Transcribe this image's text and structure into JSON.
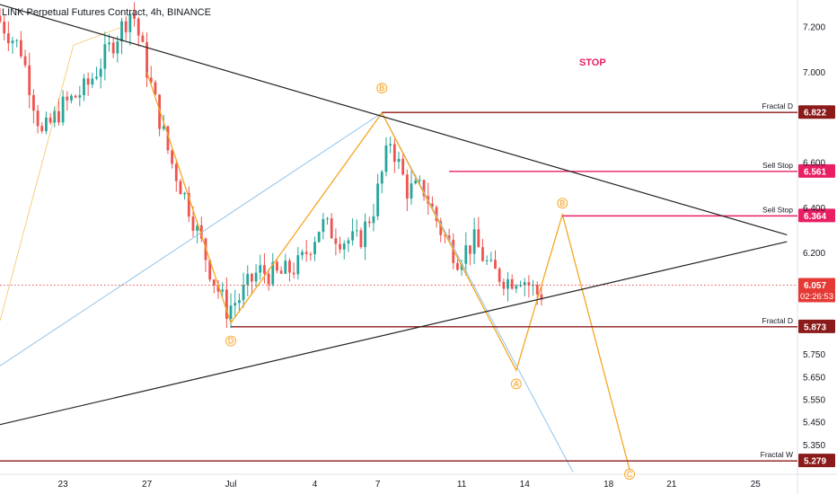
{
  "header": {
    "title": "LINK Perpetual Futures Contract, 4h, BINANCE"
  },
  "colors": {
    "up": "#26a69a",
    "down": "#ef5350",
    "pink": "#e91e63",
    "darkred": "#8b1a1a",
    "black": "#222222",
    "blue": "#90c4ec",
    "orange": "#f5a623",
    "current": "#e53935"
  },
  "chart_data": {
    "type": "candlestick",
    "title": "LINK Perpetual Futures Contract, 4h, BINANCE",
    "ylim": [
      5.22,
      7.32
    ],
    "xlim": [
      20,
      27.5
    ],
    "x_ticks": [
      {
        "v": 23,
        "label": "23"
      },
      {
        "v": 27,
        "label": "27"
      },
      {
        "v": 31,
        "label": "Jul"
      },
      {
        "v": 35,
        "label": "4"
      },
      {
        "v": 38,
        "label": "7"
      },
      {
        "v": 42,
        "label": "11"
      },
      {
        "v": 45,
        "label": "14"
      },
      {
        "v": 49,
        "label": "18"
      },
      {
        "v": 52,
        "label": "21"
      },
      {
        "v": 56,
        "label": "25"
      }
    ],
    "y_ticks": [
      "7.200",
      "7.000",
      "6.600",
      "6.400",
      "6.200",
      "5.750",
      "5.650",
      "5.550",
      "5.450",
      "5.350"
    ],
    "candle_anchors": [
      [
        20.0,
        7.25
      ],
      [
        21.2,
        7.1
      ],
      [
        22.2,
        6.72
      ],
      [
        23.2,
        6.85
      ],
      [
        24.3,
        6.93
      ],
      [
        25.5,
        7.12
      ],
      [
        26.5,
        7.28
      ],
      [
        27.5,
        6.9
      ],
      [
        28.3,
        6.62
      ],
      [
        29.3,
        6.38
      ],
      [
        30.3,
        6.1
      ],
      [
        31.0,
        5.95
      ],
      [
        31.6,
        6.0
      ],
      [
        32.5,
        6.12
      ],
      [
        33.5,
        6.1
      ],
      [
        34.5,
        6.15
      ],
      [
        35.5,
        6.33
      ],
      [
        36.5,
        6.26
      ],
      [
        37.3,
        6.25
      ],
      [
        38.0,
        6.4
      ],
      [
        38.8,
        6.7
      ],
      [
        39.6,
        6.48
      ],
      [
        40.4,
        6.48
      ],
      [
        41.2,
        6.3
      ],
      [
        42.0,
        6.18
      ],
      [
        42.8,
        6.25
      ],
      [
        43.6,
        6.12
      ],
      [
        44.4,
        6.08
      ],
      [
        45.0,
        6.1
      ],
      [
        45.8,
        6.02
      ]
    ],
    "levels": [
      {
        "price": 6.822,
        "label": "Fractal D",
        "tag": "6.822",
        "style": "darkred"
      },
      {
        "price": 6.561,
        "label": "Sell Stop",
        "tag": "6.561",
        "style": "pink"
      },
      {
        "price": 6.364,
        "label": "Sell Stop",
        "tag": "6.364",
        "style": "pink"
      },
      {
        "price": 5.873,
        "label": "Fractal D",
        "tag": "5.873",
        "style": "darkred"
      },
      {
        "price": 5.279,
        "label": "Fractal W",
        "tag": "5.279",
        "style": "darkred"
      }
    ],
    "current_price": {
      "price": 6.057,
      "tag": "6.057",
      "countdown": "02:26:53"
    },
    "trendlines": [
      {
        "name": "upper-resistance",
        "from": [
          20.0,
          7.3
        ],
        "to": [
          57.5,
          6.28
        ]
      },
      {
        "name": "lower-support",
        "from": [
          20.0,
          5.44
        ],
        "to": [
          57.5,
          6.25
        ]
      }
    ],
    "blue_path": [
      [
        20.0,
        5.7
      ],
      [
        38.2,
        6.82
      ],
      [
        47.3,
        5.23
      ]
    ],
    "orange_path": [
      [
        20.0,
        5.9
      ],
      [
        23.5,
        7.12
      ],
      [
        25.8,
        7.2
      ]
    ],
    "orange_path2": [
      [
        27.0,
        7.0
      ],
      [
        31.0,
        5.89
      ],
      [
        38.2,
        6.82
      ],
      [
        44.6,
        5.68
      ],
      [
        46.8,
        6.37
      ],
      [
        50.0,
        5.24
      ]
    ],
    "wave_labels": [
      {
        "x": 31.0,
        "y": 5.81,
        "text": "D"
      },
      {
        "x": 38.2,
        "y": 6.93,
        "text": "B"
      },
      {
        "x": 44.6,
        "y": 5.62,
        "text": "A"
      },
      {
        "x": 46.8,
        "y": 6.42,
        "text": "B"
      },
      {
        "x": 50.0,
        "y": 5.22,
        "text": "C"
      }
    ],
    "annotations": [
      {
        "text": "STOP",
        "x": 47.6,
        "y": 7.03
      }
    ]
  }
}
